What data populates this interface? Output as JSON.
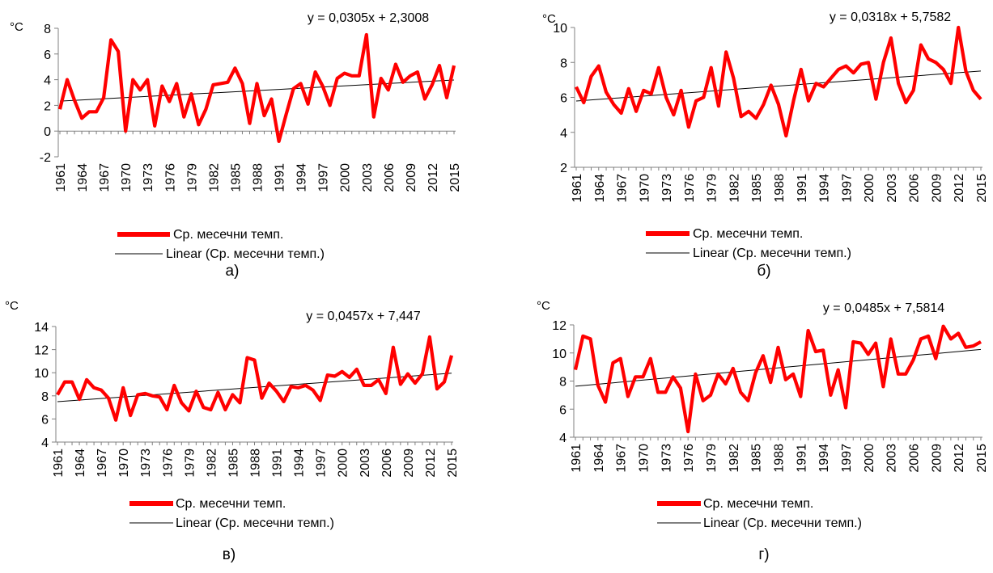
{
  "chart_data": [
    {
      "type": "line",
      "panel_label": "а)",
      "unit_label": "°C",
      "equation": "y = 0,0305x + 2,3008",
      "x": [
        1961,
        1962,
        1963,
        1964,
        1965,
        1966,
        1967,
        1968,
        1969,
        1970,
        1971,
        1972,
        1973,
        1974,
        1975,
        1976,
        1977,
        1978,
        1979,
        1980,
        1981,
        1982,
        1983,
        1984,
        1985,
        1986,
        1987,
        1988,
        1989,
        1990,
        1991,
        1992,
        1993,
        1994,
        1995,
        1996,
        1997,
        1998,
        1999,
        2000,
        2001,
        2002,
        2003,
        2004,
        2005,
        2006,
        2007,
        2008,
        2009,
        2010,
        2011,
        2012,
        2013,
        2014,
        2015
      ],
      "x_tick_labels": [
        "1961",
        "1964",
        "1967",
        "1970",
        "1973",
        "1976",
        "1979",
        "1982",
        "1985",
        "1988",
        "1991",
        "1994",
        "1997",
        "2000",
        "2003",
        "2006",
        "2009",
        "2012",
        "2015"
      ],
      "ylim": [
        -2,
        8
      ],
      "y_ticks": [
        -2,
        0,
        2,
        4,
        6,
        8
      ],
      "series": [
        {
          "name": "Ср. месечни темп.",
          "color": "#ff0000",
          "values": [
            1.7,
            4.0,
            2.4,
            1.0,
            1.5,
            1.5,
            2.6,
            7.1,
            6.2,
            0.0,
            4.0,
            3.2,
            4.0,
            0.4,
            3.5,
            2.3,
            3.7,
            1.1,
            2.9,
            0.5,
            1.7,
            3.6,
            3.7,
            3.8,
            4.9,
            3.7,
            0.6,
            3.7,
            1.2,
            2.5,
            -0.8,
            1.3,
            3.3,
            3.7,
            2.1,
            4.6,
            3.5,
            2.0,
            4.1,
            4.5,
            4.3,
            4.3,
            7.5,
            1.1,
            4.1,
            3.2,
            5.2,
            3.8,
            4.3,
            4.6,
            2.5,
            3.6,
            5.1,
            2.6,
            5.1
          ]
        },
        {
          "name": "Linear (Ср. месечни темп.)",
          "color": "#000000",
          "trend": [
            0.0305,
            2.3008
          ]
        }
      ]
    },
    {
      "type": "line",
      "panel_label": "б)",
      "unit_label": "°C",
      "equation": "y = 0,0318x + 5,7582",
      "x": [
        1961,
        1962,
        1963,
        1964,
        1965,
        1966,
        1967,
        1968,
        1969,
        1970,
        1971,
        1972,
        1973,
        1974,
        1975,
        1976,
        1977,
        1978,
        1979,
        1980,
        1981,
        1982,
        1983,
        1984,
        1985,
        1986,
        1987,
        1988,
        1989,
        1990,
        1991,
        1992,
        1993,
        1994,
        1995,
        1996,
        1997,
        1998,
        1999,
        2000,
        2001,
        2002,
        2003,
        2004,
        2005,
        2006,
        2007,
        2008,
        2009,
        2010,
        2011,
        2012,
        2013,
        2014,
        2015
      ],
      "x_tick_labels": [
        "1961",
        "1964",
        "1967",
        "1970",
        "1973",
        "1976",
        "1979",
        "1982",
        "1985",
        "1988",
        "1991",
        "1994",
        "1997",
        "2000",
        "2003",
        "2006",
        "2009",
        "2012",
        "2015"
      ],
      "ylim": [
        2,
        10
      ],
      "y_ticks": [
        2,
        4,
        6,
        8,
        10
      ],
      "series": [
        {
          "name": "Ср. месечни темп.",
          "color": "#ff0000",
          "values": [
            6.6,
            5.7,
            7.2,
            7.8,
            6.3,
            5.6,
            5.1,
            6.5,
            5.2,
            6.4,
            6.2,
            7.7,
            6.0,
            5.0,
            6.4,
            4.3,
            5.8,
            6.0,
            7.7,
            5.5,
            8.6,
            7.1,
            4.9,
            5.2,
            4.8,
            5.6,
            6.7,
            5.6,
            3.8,
            5.8,
            7.6,
            5.8,
            6.8,
            6.6,
            7.1,
            7.6,
            7.8,
            7.4,
            7.9,
            8.0,
            5.9,
            8.0,
            9.4,
            6.8,
            5.7,
            6.4,
            9.0,
            8.2,
            8.0,
            7.6,
            6.8,
            10.0,
            7.5,
            6.4,
            5.9
          ]
        },
        {
          "name": "Linear (Ср. месечни темп.)",
          "color": "#000000",
          "trend": [
            0.0318,
            5.7582
          ]
        }
      ]
    },
    {
      "type": "line",
      "panel_label": "в)",
      "unit_label": "°C",
      "equation": "y = 0,0457x + 7,447",
      "x": [
        1961,
        1962,
        1963,
        1964,
        1965,
        1966,
        1967,
        1968,
        1969,
        1970,
        1971,
        1972,
        1973,
        1974,
        1975,
        1976,
        1977,
        1978,
        1979,
        1980,
        1981,
        1982,
        1983,
        1984,
        1985,
        1986,
        1987,
        1988,
        1989,
        1990,
        1991,
        1992,
        1993,
        1994,
        1995,
        1996,
        1997,
        1998,
        1999,
        2000,
        2001,
        2002,
        2003,
        2004,
        2005,
        2006,
        2007,
        2008,
        2009,
        2010,
        2011,
        2012,
        2013,
        2014,
        2015
      ],
      "x_tick_labels": [
        "1961",
        "1964",
        "1967",
        "1970",
        "1973",
        "1976",
        "1979",
        "1982",
        "1985",
        "1988",
        "1991",
        "1994",
        "1997",
        "2000",
        "2003",
        "2006",
        "2009",
        "2012",
        "2015"
      ],
      "ylim": [
        4,
        14
      ],
      "y_ticks": [
        4,
        6,
        8,
        10,
        12,
        14
      ],
      "series": [
        {
          "name": "Ср. месечни темп.",
          "color": "#ff0000",
          "values": [
            8.1,
            9.2,
            9.2,
            7.7,
            9.4,
            8.7,
            8.5,
            7.8,
            5.9,
            8.7,
            6.3,
            8.1,
            8.2,
            8.0,
            7.9,
            6.8,
            8.9,
            7.4,
            6.7,
            8.4,
            7.0,
            6.8,
            8.3,
            6.8,
            8.1,
            7.4,
            11.3,
            11.1,
            7.8,
            9.1,
            8.4,
            7.5,
            8.8,
            8.7,
            8.9,
            8.5,
            7.6,
            9.8,
            9.7,
            10.1,
            9.6,
            10.3,
            8.9,
            8.9,
            9.4,
            8.2,
            12.2,
            9.0,
            9.9,
            9.1,
            9.9,
            13.1,
            8.6,
            9.2,
            11.5
          ]
        },
        {
          "name": "Linear (Ср. месечни темп.)",
          "color": "#000000",
          "trend": [
            0.0457,
            7.447
          ]
        }
      ]
    },
    {
      "type": "line",
      "panel_label": "г)",
      "unit_label": "°C",
      "equation": "y = 0,0485x + 7,5814",
      "x": [
        1961,
        1962,
        1963,
        1964,
        1965,
        1966,
        1967,
        1968,
        1969,
        1970,
        1971,
        1972,
        1973,
        1974,
        1975,
        1976,
        1977,
        1978,
        1979,
        1980,
        1981,
        1982,
        1983,
        1984,
        1985,
        1986,
        1987,
        1988,
        1989,
        1990,
        1991,
        1992,
        1993,
        1994,
        1995,
        1996,
        1997,
        1998,
        1999,
        2000,
        2001,
        2002,
        2003,
        2004,
        2005,
        2006,
        2007,
        2008,
        2009,
        2010,
        2011,
        2012,
        2013,
        2014,
        2015
      ],
      "x_tick_labels": [
        "1961",
        "1964",
        "1967",
        "1970",
        "1973",
        "1976",
        "1979",
        "1982",
        "1985",
        "1988",
        "1991",
        "1994",
        "1997",
        "2000",
        "2003",
        "2006",
        "2009",
        "2012",
        "2015"
      ],
      "ylim": [
        4,
        12
      ],
      "y_ticks": [
        4,
        6,
        8,
        10,
        12
      ],
      "series": [
        {
          "name": "Ср. месечни темп.",
          "color": "#ff0000",
          "values": [
            8.8,
            11.2,
            11.0,
            7.7,
            6.5,
            9.3,
            9.6,
            6.9,
            8.3,
            8.3,
            9.6,
            7.2,
            7.2,
            8.3,
            7.5,
            4.4,
            8.5,
            6.6,
            7.0,
            8.5,
            7.8,
            8.9,
            7.2,
            6.6,
            8.6,
            9.8,
            7.9,
            10.4,
            8.1,
            8.5,
            6.9,
            11.6,
            10.1,
            10.2,
            7.0,
            8.8,
            6.1,
            10.8,
            10.7,
            9.9,
            10.7,
            7.6,
            11.0,
            8.5,
            8.5,
            9.5,
            11.0,
            11.2,
            9.6,
            11.9,
            11.0,
            11.4,
            10.4,
            10.5,
            10.8
          ]
        },
        {
          "name": "Linear (Ср. месечни темп.)",
          "color": "#000000",
          "trend": [
            0.0485,
            7.5814
          ]
        }
      ]
    }
  ]
}
